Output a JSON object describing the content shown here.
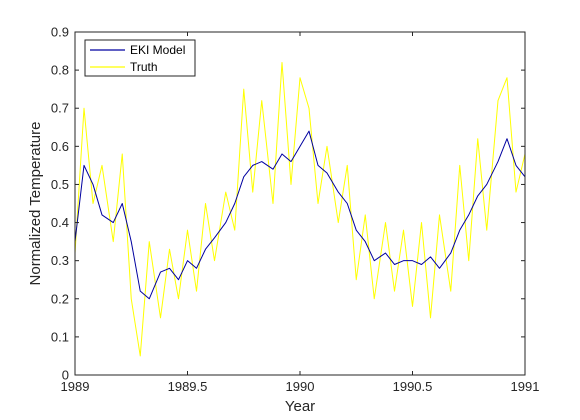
{
  "chart_data": {
    "type": "line",
    "title": "",
    "xlabel": "Year",
    "ylabel": "Normalized Temperature",
    "xlim": [
      1989,
      1991
    ],
    "ylim": [
      0,
      0.9
    ],
    "xticks": [
      1989,
      1989.5,
      1990,
      1990.5,
      1991
    ],
    "xtick_labels": [
      "1989",
      "1989.5",
      "1990",
      "1990.5",
      "1991"
    ],
    "yticks": [
      0,
      0.1,
      0.2,
      0.3,
      0.4,
      0.5,
      0.6,
      0.7,
      0.8,
      0.9
    ],
    "ytick_labels": [
      "0",
      "0.1",
      "0.2",
      "0.3",
      "0.4",
      "0.5",
      "0.6",
      "0.7",
      "0.8",
      "0.9"
    ],
    "grid": false,
    "legend_position": "top-left",
    "x": [
      1989.0,
      1989.04,
      1989.08,
      1989.12,
      1989.17,
      1989.21,
      1989.25,
      1989.29,
      1989.33,
      1989.38,
      1989.42,
      1989.46,
      1989.5,
      1989.54,
      1989.58,
      1989.62,
      1989.67,
      1989.71,
      1989.75,
      1989.79,
      1989.83,
      1989.88,
      1989.92,
      1989.96,
      1990.0,
      1990.04,
      1990.08,
      1990.12,
      1990.17,
      1990.21,
      1990.25,
      1990.29,
      1990.33,
      1990.38,
      1990.42,
      1990.46,
      1990.5,
      1990.54,
      1990.58,
      1990.62,
      1990.67,
      1990.71,
      1990.75,
      1990.79,
      1990.83,
      1990.88,
      1990.92,
      1990.96,
      1991.0
    ],
    "series": [
      {
        "name": "EKI Model",
        "color": "#0000a0",
        "values": [
          0.35,
          0.55,
          0.5,
          0.42,
          0.4,
          0.45,
          0.35,
          0.22,
          0.2,
          0.27,
          0.28,
          0.25,
          0.3,
          0.28,
          0.33,
          0.36,
          0.4,
          0.45,
          0.52,
          0.55,
          0.56,
          0.54,
          0.58,
          0.56,
          0.6,
          0.64,
          0.55,
          0.53,
          0.48,
          0.45,
          0.38,
          0.35,
          0.3,
          0.32,
          0.29,
          0.3,
          0.3,
          0.29,
          0.31,
          0.28,
          0.32,
          0.38,
          0.42,
          0.47,
          0.5,
          0.56,
          0.62,
          0.55,
          0.52
        ]
      },
      {
        "name": "Truth",
        "color": "#ffff00",
        "values": [
          0.32,
          0.7,
          0.45,
          0.55,
          0.35,
          0.58,
          0.2,
          0.05,
          0.35,
          0.15,
          0.33,
          0.2,
          0.38,
          0.22,
          0.45,
          0.3,
          0.48,
          0.38,
          0.75,
          0.48,
          0.72,
          0.45,
          0.82,
          0.5,
          0.78,
          0.7,
          0.45,
          0.6,
          0.4,
          0.55,
          0.25,
          0.42,
          0.2,
          0.4,
          0.22,
          0.38,
          0.18,
          0.4,
          0.15,
          0.42,
          0.22,
          0.55,
          0.3,
          0.62,
          0.38,
          0.72,
          0.78,
          0.48,
          0.58
        ]
      }
    ]
  }
}
